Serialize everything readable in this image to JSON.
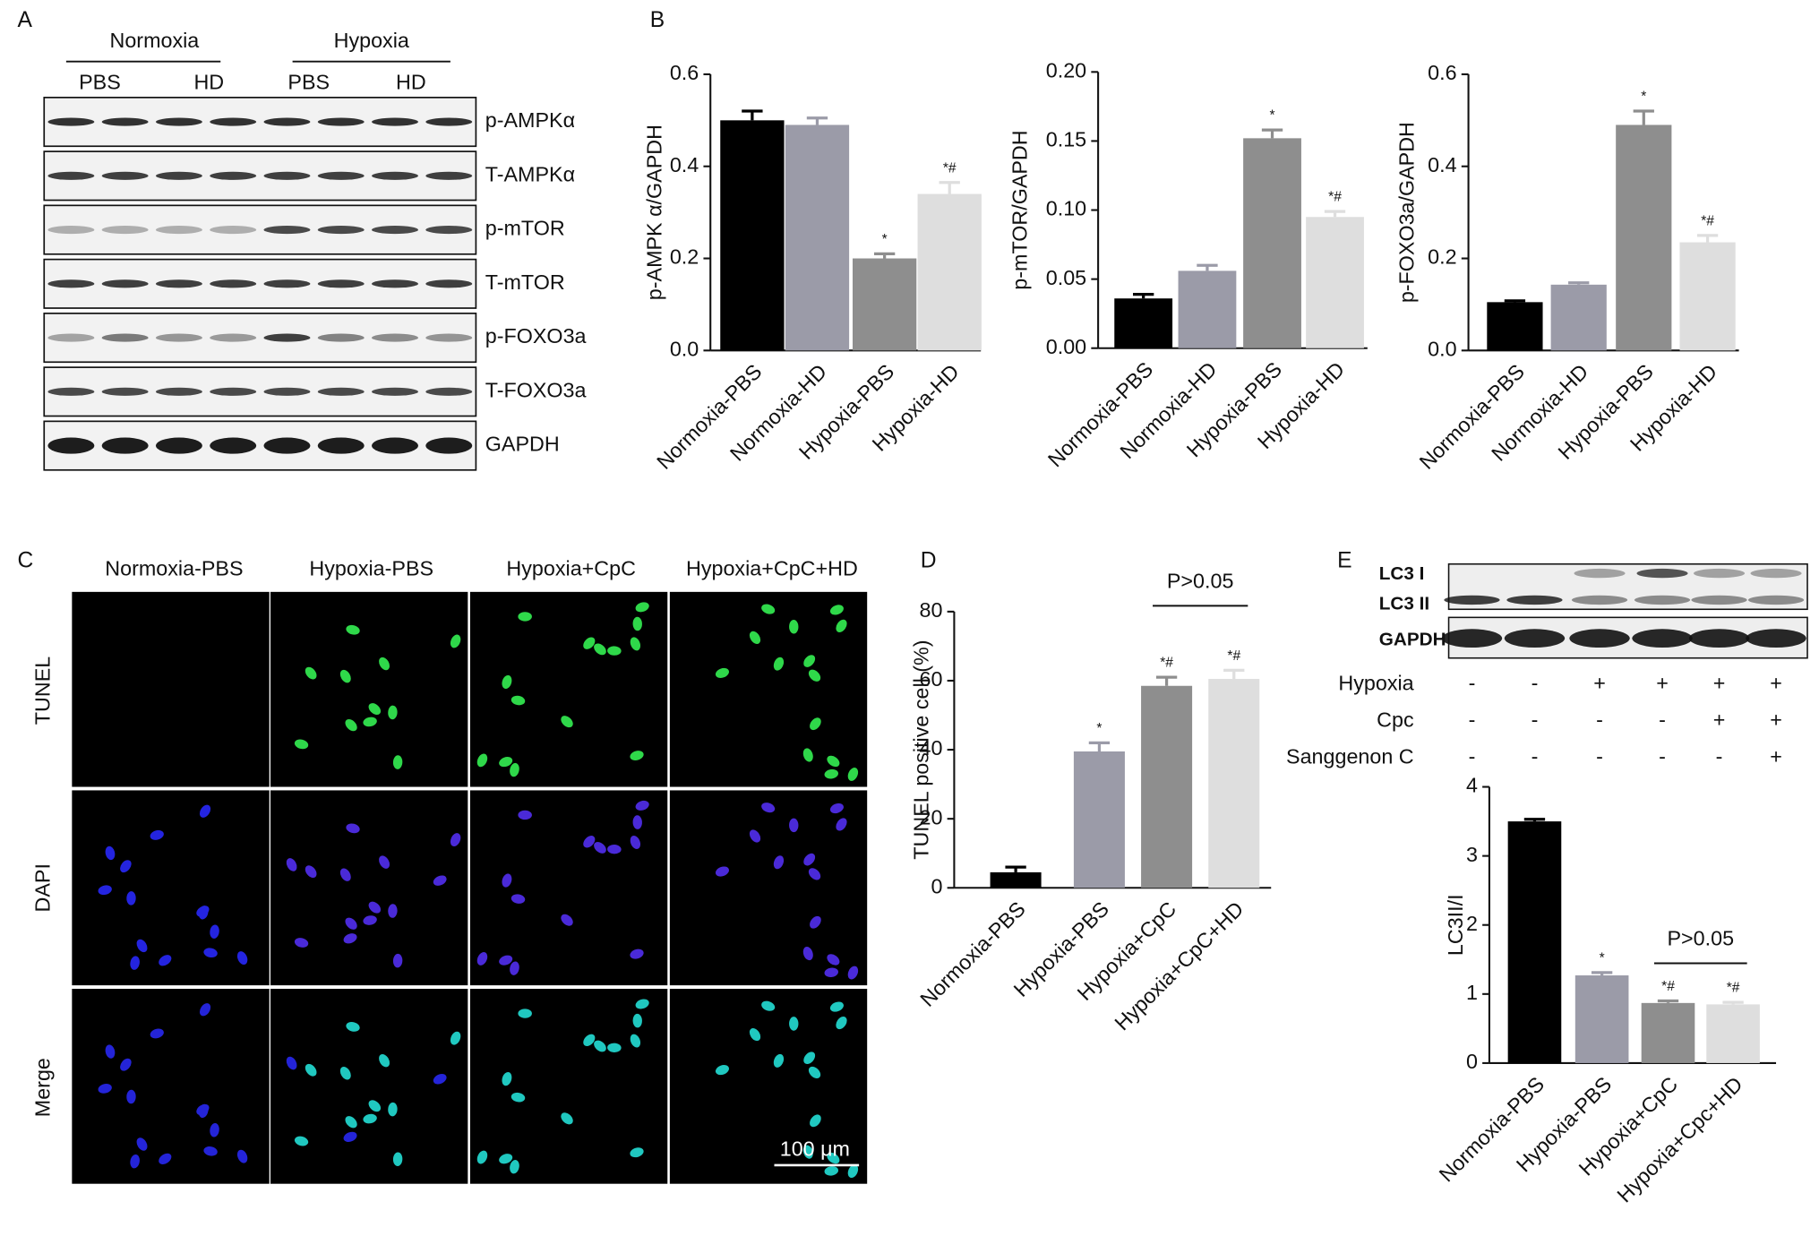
{
  "panels": {
    "letters": [
      "A",
      "B",
      "C",
      "D",
      "E"
    ],
    "blot_a": {
      "groups": [
        "Normoxia",
        "Hypoxia"
      ],
      "subgroups": [
        "PBS",
        "HD",
        "PBS",
        "HD"
      ],
      "bands": [
        "p-AMPKα",
        "T-AMPKα",
        "p-mTOR",
        "T-mTOR",
        "p-FOXO3a",
        "T-FOXO3a",
        "GAPDH"
      ]
    },
    "images_c": {
      "columns": [
        "Normoxia-PBS",
        "Hypoxia-PBS",
        "Hypoxia+CpC",
        "Hypoxia+CpC+HD"
      ],
      "rows": [
        "TUNEL",
        "DAPI",
        "Merge"
      ],
      "scale_bar": "100 μm"
    },
    "blot_e": {
      "bands": [
        "LC3 I",
        "LC3 II",
        "GAPDH"
      ],
      "conditions": [
        {
          "label": "Hypoxia",
          "signs": [
            "-",
            "-",
            "+",
            "+",
            "+",
            "+"
          ]
        },
        {
          "label": "Cpc",
          "signs": [
            "-",
            "-",
            "-",
            "-",
            "+",
            "+"
          ]
        },
        {
          "label": "Sanggenon C",
          "signs": [
            "-",
            "-",
            "-",
            "-",
            "-",
            "+"
          ]
        }
      ]
    }
  },
  "chart_data": [
    {
      "type": "bar",
      "y_label": "p-AMPK α/GAPDH",
      "categories": [
        "Normoxia-PBS",
        "Normoxia-HD",
        "Hypoxia-PBS",
        "Hypoxia-HD"
      ],
      "values": [
        0.5,
        0.49,
        0.2,
        0.34
      ],
      "errors": [
        0.02,
        0.015,
        0.01,
        0.025
      ],
      "significance": [
        null,
        null,
        "*",
        "*#"
      ],
      "colors": [
        "#000000",
        "#9b9ba8",
        "#8e8e8e",
        "#dedede"
      ],
      "ylim": [
        0,
        0.6
      ],
      "yticks": [
        {
          "value": 0,
          "label": "0.0"
        },
        0.2,
        0.4,
        0.6
      ]
    },
    {
      "type": "bar",
      "y_label": "p-mTOR/GAPDH",
      "categories": [
        "Normoxia-PBS",
        "Normoxia-HD",
        "Hypoxia-PBS",
        "Hypoxia-HD"
      ],
      "values": [
        0.036,
        0.056,
        0.152,
        0.095
      ],
      "errors": [
        0.003,
        0.004,
        0.006,
        0.004
      ],
      "significance": [
        null,
        null,
        "*",
        "*#"
      ],
      "colors": [
        "#000000",
        "#9b9ba8",
        "#8e8e8e",
        "#dedede"
      ],
      "ylim": [
        0,
        0.2
      ],
      "yticks": [
        {
          "value": 0,
          "label": "0.00"
        },
        {
          "value": 0.05,
          "label": "0.05"
        },
        {
          "value": 0.1,
          "label": "0.10"
        },
        {
          "value": 0.15,
          "label": "0.15"
        },
        {
          "value": 0.2,
          "label": "0.20"
        }
      ]
    },
    {
      "type": "bar",
      "y_label": "p-FOXO3a/GAPDH",
      "categories": [
        "Normoxia-PBS",
        "Normoxia-HD",
        "Hypoxia-PBS",
        "Hypoxia-HD"
      ],
      "values": [
        0.105,
        0.143,
        0.49,
        0.235
      ],
      "errors": [
        0.003,
        0.004,
        0.03,
        0.015
      ],
      "significance": [
        null,
        null,
        "*",
        "*#"
      ],
      "colors": [
        "#000000",
        "#9b9ba8",
        "#8e8e8e",
        "#dedede"
      ],
      "ylim": [
        0,
        0.6
      ],
      "yticks": [
        {
          "value": 0,
          "label": "0.0"
        },
        0.2,
        0.4,
        0.6
      ]
    },
    {
      "type": "bar",
      "y_label": "TUNEL  positive cell (%)",
      "categories": [
        "Normoxia-PBS",
        "Hypoxia-PBS",
        "Hypoxia+CpC",
        "Hypoxia+CpC+HD"
      ],
      "values": [
        4.5,
        39.5,
        58.5,
        60.5
      ],
      "errors": [
        1.5,
        2.5,
        2.5,
        2.5
      ],
      "significance": [
        null,
        "*",
        "*#",
        "*#"
      ],
      "bracket_label": "P>0.05",
      "colors": [
        "#000000",
        "#9b9ba8",
        "#8e8e8e",
        "#dedede"
      ],
      "ylim": [
        0,
        80
      ],
      "yticks": [
        0,
        20,
        40,
        60,
        80
      ]
    },
    {
      "type": "bar",
      "y_label": "LC3II/I",
      "categories": [
        "Normoxia-PBS",
        "Hypoxia-PBS",
        "Hypoxia+CpC",
        "Hypoxia+Cpc+HD"
      ],
      "values": [
        3.5,
        1.27,
        0.87,
        0.85
      ],
      "errors": [
        0.03,
        0.04,
        0.03,
        0.03
      ],
      "significance": [
        null,
        "*",
        "*#",
        "*#"
      ],
      "bracket_label": "P>0.05",
      "colors": [
        "#000000",
        "#9b9ba8",
        "#8e8e8e",
        "#dedede"
      ],
      "ylim": [
        0,
        4
      ],
      "yticks": [
        0,
        1,
        2,
        3,
        4
      ]
    }
  ]
}
